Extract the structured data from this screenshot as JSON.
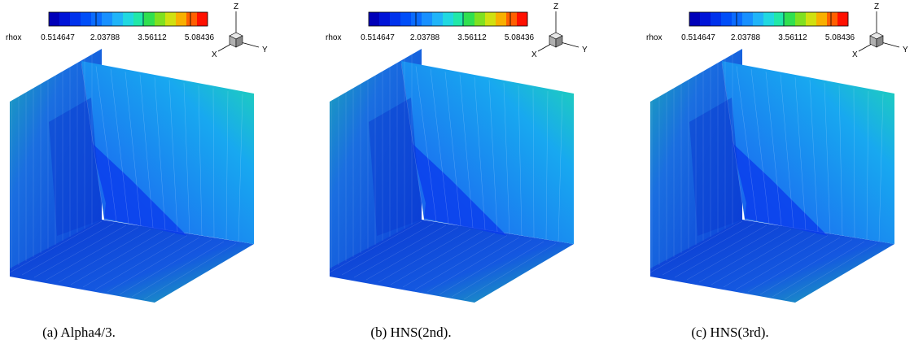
{
  "panels": [
    {
      "legend_label": "rhox",
      "ticks": [
        0.514647,
        2.03788,
        3.56112,
        5.08436
      ],
      "axes": {
        "z": "Z",
        "x": "X",
        "y": "Y"
      },
      "caption": "(a) Alpha4/3."
    },
    {
      "legend_label": "rhox",
      "ticks": [
        0.514647,
        2.03788,
        3.56112,
        5.08436
      ],
      "axes": {
        "z": "Z",
        "x": "X",
        "y": "Y"
      },
      "caption": "(b) HNS(2nd)."
    },
    {
      "legend_label": "rhox",
      "ticks": [
        0.514647,
        2.03788,
        3.56112,
        5.08436
      ],
      "axes": {
        "z": "Z",
        "x": "X",
        "y": "Y"
      },
      "caption": "(c) HNS(3rd)."
    }
  ]
}
